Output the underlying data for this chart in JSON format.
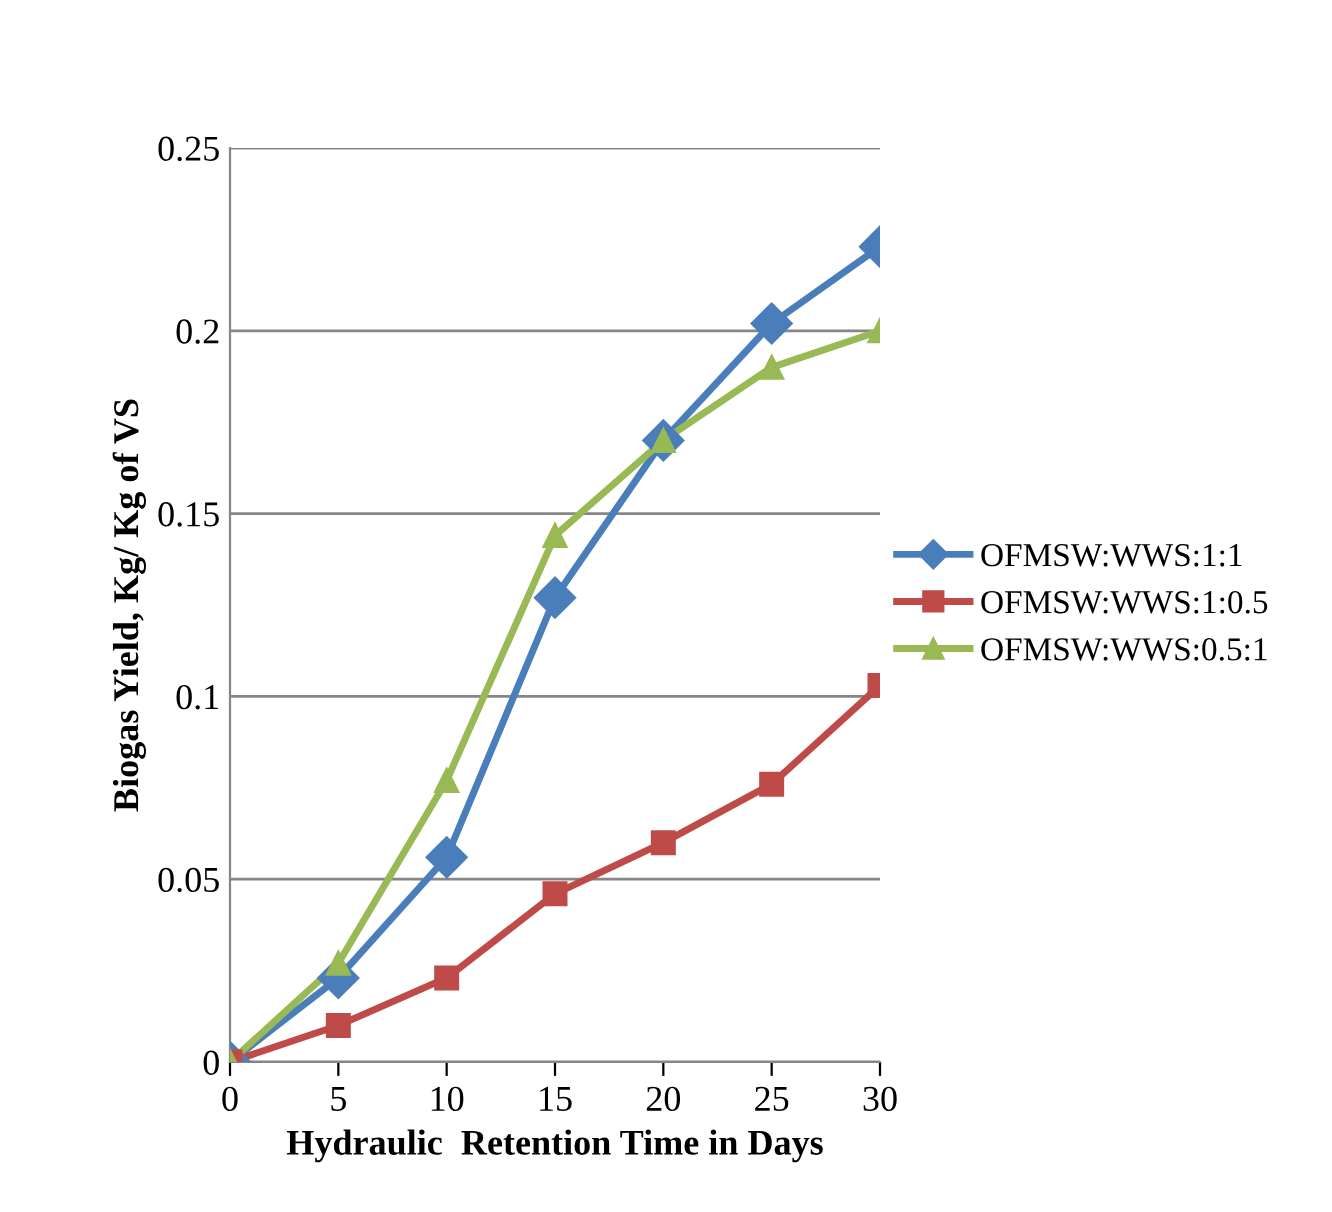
{
  "chart_data": {
    "type": "line",
    "xlabel": "Hydraulic  Retention Time in Days",
    "ylabel": "Biogas Yield, Kg/ Kg of VS",
    "x": [
      0,
      5,
      10,
      15,
      20,
      25,
      30
    ],
    "series": [
      {
        "name": "OFMSW:WWS:1:1",
        "color": "#4a7ebb",
        "marker": "diamond",
        "values": [
          0,
          0.023,
          0.056,
          0.127,
          0.17,
          0.202,
          0.223
        ]
      },
      {
        "name": "OFMSW:WWS:1:0.5",
        "color": "#be4b48",
        "marker": "square",
        "values": [
          0,
          0.01,
          0.023,
          0.046,
          0.06,
          0.076,
          0.103
        ]
      },
      {
        "name": "OFMSW:WWS:0.5:1",
        "color": "#98b954",
        "marker": "triangle",
        "values": [
          0,
          0.027,
          0.077,
          0.144,
          0.17,
          0.19,
          0.2
        ]
      }
    ],
    "xlim": [
      0,
      30
    ],
    "xticks": [
      0,
      5,
      10,
      15,
      20,
      25,
      30
    ],
    "ylim": [
      0,
      0.25
    ],
    "yticks": [
      0,
      0.05,
      0.1,
      0.15,
      0.2,
      0.25
    ],
    "grid": "y",
    "legend": "right",
    "line_style": "solid"
  }
}
